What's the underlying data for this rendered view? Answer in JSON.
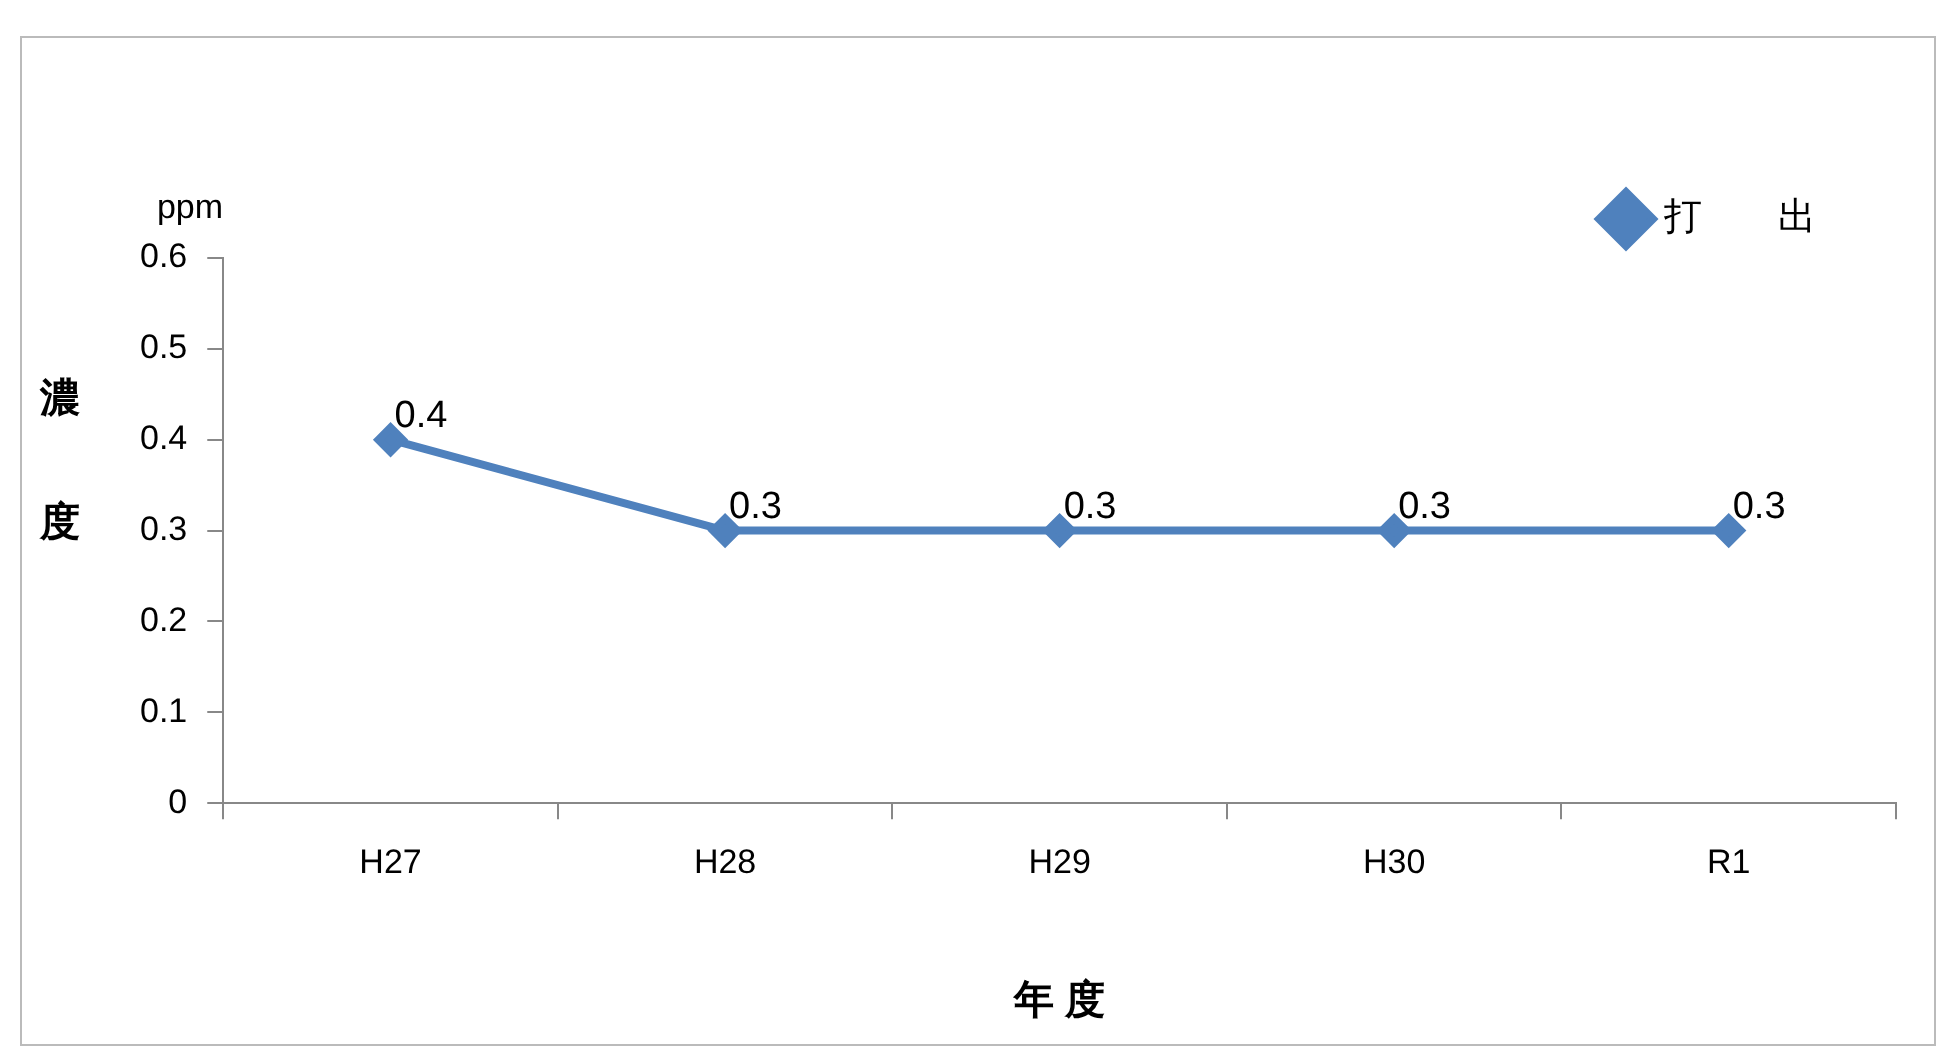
{
  "chart_data": {
    "type": "line",
    "categories": [
      "H27",
      "H28",
      "H29",
      "H30",
      "R1"
    ],
    "series": [
      {
        "name": "打　　出",
        "color": "#4f81bd",
        "values": [
          0.4,
          0.3,
          0.3,
          0.3,
          0.3
        ]
      }
    ],
    "xlabel": "年 度",
    "ylabel": "濃度",
    "annotations": [
      "ppm"
    ],
    "ylim": [
      0,
      0.6
    ],
    "yticks": [
      0,
      0.1,
      0.2,
      0.3,
      0.4,
      0.5,
      0.6
    ],
    "grid": false,
    "legend": "top right",
    "marker": "diamond",
    "line_style": "solid",
    "data_labels": true
  }
}
